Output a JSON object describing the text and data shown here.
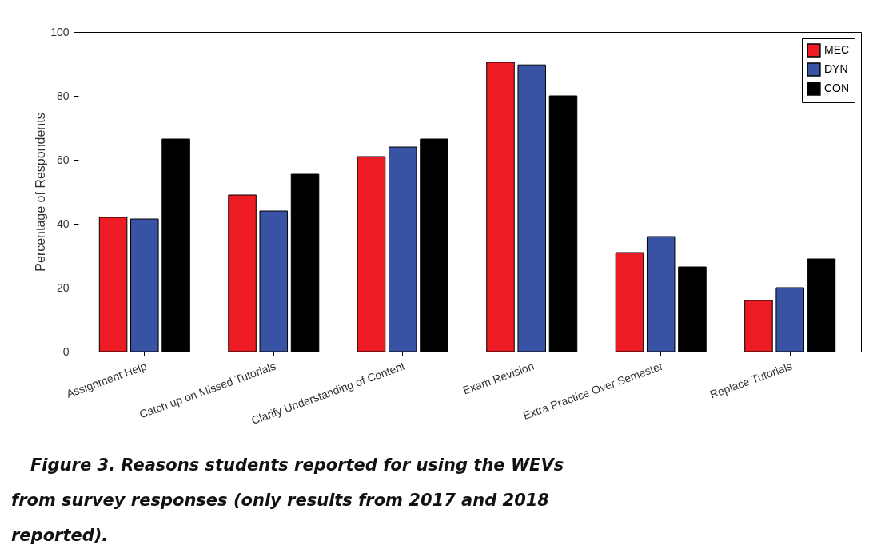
{
  "chart_data": {
    "type": "bar",
    "ylabel": "Percentage of Respondents",
    "categories": [
      "Assignment Help",
      "Catch up on Missed Tutorials",
      "Clarify Understanding of Content",
      "Exam Revision",
      "Extra Practice Over Semester",
      "Replace Tutorials"
    ],
    "series": [
      {
        "name": "MEC",
        "color": "#ed1c24",
        "values": [
          42,
          49,
          61,
          90.5,
          31,
          16
        ]
      },
      {
        "name": "DYN",
        "color": "#3953a4",
        "values": [
          41.5,
          44,
          64,
          89.7,
          36,
          20
        ]
      },
      {
        "name": "CON",
        "color": "#000000",
        "values": [
          66.5,
          55.5,
          66.5,
          80,
          26.5,
          29
        ]
      }
    ],
    "ylim": [
      0,
      100
    ],
    "yticks": [
      0,
      20,
      40,
      60,
      80,
      100
    ],
    "grid": false,
    "legend": "top right",
    "annotations": [
      "Figure 3. Reasons students reported for using the WEVs from survey responses (only results from 2017 and 2018 reported)."
    ]
  }
}
